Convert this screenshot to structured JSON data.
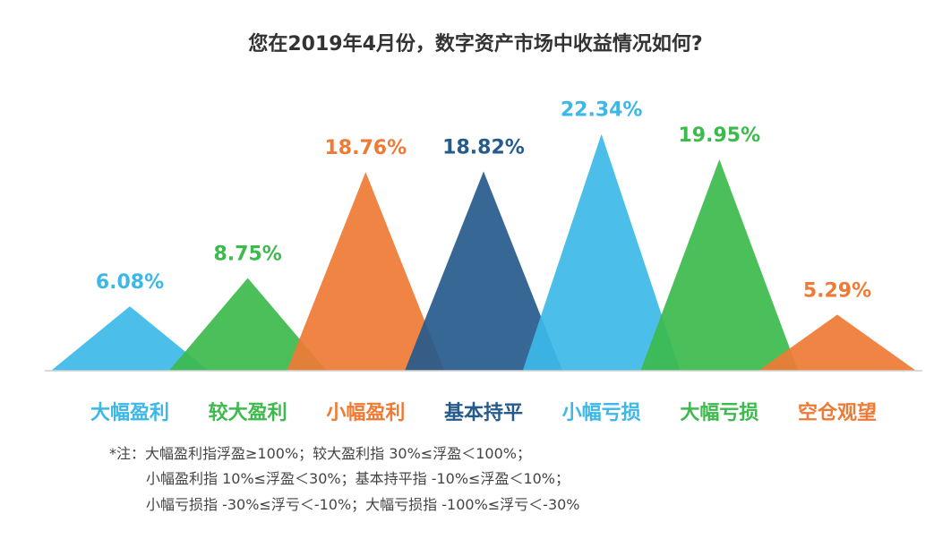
{
  "chart_data": {
    "type": "bar",
    "title": "您在2019年4月份，数字资产市场中收益情况如何?",
    "categories": [
      "大幅盈利",
      "较大盈利",
      "小幅盈利",
      "基本持平",
      "小幅亏损",
      "大幅亏损",
      "空仓观望"
    ],
    "values": [
      6.08,
      8.75,
      18.76,
      18.82,
      22.34,
      19.95,
      5.29
    ],
    "value_labels": [
      "6.08%",
      "8.75%",
      "18.76%",
      "18.82%",
      "22.34%",
      "19.95%",
      "5.29%"
    ],
    "unit": "%",
    "colors": [
      "#3cb8e8",
      "#3cba4c",
      "#ef7a35",
      "#255a8c",
      "#3cb8e8",
      "#3cba4c",
      "#ef7a35"
    ],
    "grid": false,
    "legend": "none"
  },
  "notes": [
    "*注：大幅盈利指浮盈≥100%；较大盈利指 30%≤浮盈＜100%；",
    "小幅盈利指 10%≤浮盈＜30%；基本持平指 -10%≤浮盈＜10%；",
    "小幅亏损指 -30%≤浮亏＜-10%；大幅亏损指 -100%≤浮亏＜-30%"
  ]
}
